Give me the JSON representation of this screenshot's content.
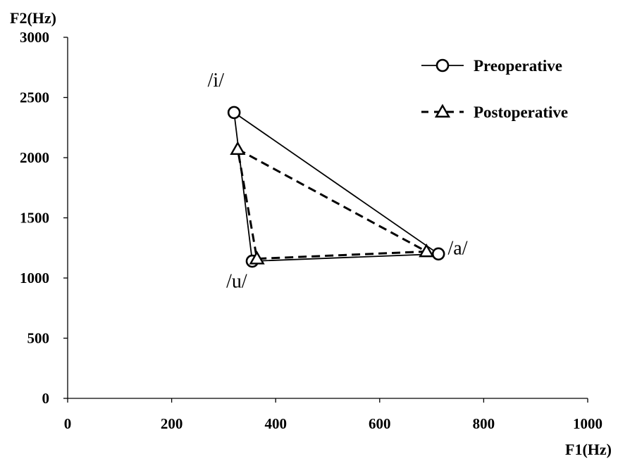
{
  "chart_data": {
    "type": "line",
    "xlabel": "F1(Hz)",
    "ylabel": "F2(Hz)",
    "xlim": [
      0,
      1000
    ],
    "ylim": [
      0,
      3000
    ],
    "x_ticks": [
      0,
      200,
      400,
      600,
      800,
      1000
    ],
    "y_ticks": [
      0,
      500,
      1000,
      1500,
      2000,
      2500,
      3000
    ],
    "grid": false,
    "legend_position": "top-right",
    "series": [
      {
        "name": "Preoperative",
        "marker": "circle",
        "line_style": "solid",
        "color": "#000000",
        "points": [
          {
            "label": "/i/",
            "x": 320,
            "y": 2375
          },
          {
            "label": "/a/",
            "x": 713,
            "y": 1200
          },
          {
            "label": "/u/",
            "x": 355,
            "y": 1140
          },
          {
            "label": "/i/",
            "x": 320,
            "y": 2375
          }
        ]
      },
      {
        "name": "Postoperative",
        "marker": "triangle",
        "line_style": "dashed",
        "color": "#000000",
        "points": [
          {
            "label": "/i/",
            "x": 327,
            "y": 2070
          },
          {
            "label": "/a/",
            "x": 690,
            "y": 1220
          },
          {
            "label": "/u/",
            "x": 364,
            "y": 1160
          },
          {
            "label": "/i/",
            "x": 327,
            "y": 2070
          }
        ]
      }
    ],
    "annotations": [
      {
        "text": "/i/",
        "x": 285,
        "y": 2590
      },
      {
        "text": "/a/",
        "x": 750,
        "y": 1195
      },
      {
        "text": "/u/",
        "x": 325,
        "y": 920
      }
    ]
  }
}
